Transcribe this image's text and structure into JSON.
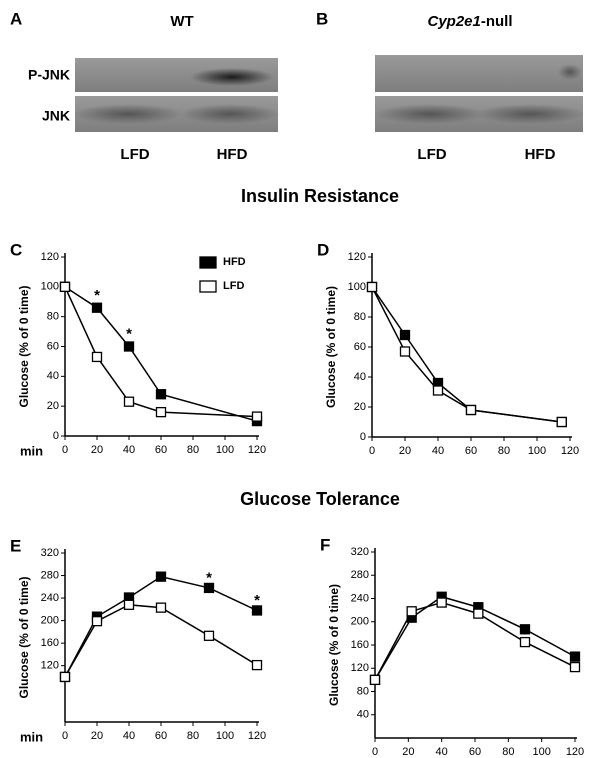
{
  "blots": [
    {
      "panel": "A",
      "title": "WT",
      "rows": [
        "P-JNK",
        "JNK"
      ],
      "lanes": [
        "LFD",
        "HFD"
      ]
    },
    {
      "panel": "B",
      "title_italic": "Cyp2e1",
      "title_rest": "-null",
      "lanes": [
        "LFD",
        "HFD"
      ]
    }
  ],
  "section_titles": [
    "Insulin Resistance",
    "Glucose Tolerance"
  ],
  "chart_data": [
    {
      "type": "line",
      "panel": "C",
      "ylabel": "Glucose (% of 0 time)",
      "xlabel": "min",
      "xlim": [
        0,
        120
      ],
      "xticks": [
        0,
        20,
        40,
        60,
        80,
        100,
        120
      ],
      "ylim": [
        0,
        120
      ],
      "yticks": [
        0,
        20,
        40,
        60,
        80,
        100,
        120
      ],
      "legend": true,
      "series": [
        {
          "name": "HFD",
          "color": "#000000",
          "marker": "filled",
          "x": [
            0,
            20,
            40,
            60,
            120
          ],
          "values": [
            100,
            86,
            60,
            28,
            10
          ]
        },
        {
          "name": "LFD",
          "color": "#000000",
          "marker": "open",
          "x": [
            0,
            20,
            40,
            60,
            120
          ],
          "values": [
            100,
            53,
            23,
            16,
            13
          ]
        }
      ],
      "annotations": [
        {
          "text": "*",
          "x": 20,
          "y": 96
        },
        {
          "text": "*",
          "x": 40,
          "y": 70
        }
      ]
    },
    {
      "type": "line",
      "panel": "D",
      "ylabel": "Glucose (% of 0 time)",
      "xlim": [
        0,
        120
      ],
      "xticks": [
        0,
        20,
        40,
        60,
        80,
        100,
        120
      ],
      "ylim": [
        0,
        120
      ],
      "yticks": [
        0,
        20,
        40,
        60,
        80,
        100,
        120
      ],
      "legend": false,
      "series": [
        {
          "color": "#000000",
          "marker": "filled",
          "x": [
            0,
            20,
            40,
            60,
            115
          ],
          "values": [
            100,
            68,
            36,
            18,
            10
          ]
        },
        {
          "color": "#000000",
          "marker": "open",
          "x": [
            0,
            20,
            40,
            60,
            115
          ],
          "values": [
            100,
            57,
            31,
            18,
            10
          ]
        }
      ]
    },
    {
      "type": "line",
      "panel": "E",
      "ylabel": "Glucose (% of 0 time)",
      "xlabel": "min",
      "xlim": [
        0,
        120
      ],
      "xticks": [
        0,
        20,
        40,
        60,
        80,
        100,
        120
      ],
      "ylim": [
        20,
        320
      ],
      "yticks": [
        120,
        160,
        200,
        240,
        280,
        320
      ],
      "legend": false,
      "series": [
        {
          "color": "#000000",
          "marker": "filled",
          "x": [
            0,
            20,
            40,
            60,
            90,
            120
          ],
          "values": [
            100,
            207,
            241,
            278,
            258,
            218
          ]
        },
        {
          "color": "#000000",
          "marker": "open",
          "x": [
            0,
            20,
            40,
            60,
            90,
            120
          ],
          "values": [
            100,
            199,
            228,
            223,
            173,
            121
          ]
        }
      ],
      "annotations": [
        {
          "text": "*",
          "x": 90,
          "y": 280
        },
        {
          "text": "*",
          "x": 120,
          "y": 240
        }
      ]
    },
    {
      "type": "line",
      "panel": "F",
      "ylabel": "Glucose (% of 0 time)",
      "xlim": [
        0,
        120
      ],
      "xticks": [
        0,
        20,
        40,
        60,
        80,
        100,
        120
      ],
      "ylim": [
        0,
        320
      ],
      "yticks": [
        40,
        80,
        120,
        160,
        200,
        240,
        280,
        320
      ],
      "legend": false,
      "series": [
        {
          "color": "#000000",
          "marker": "filled",
          "x": [
            0,
            22,
            40,
            62,
            90,
            120
          ],
          "values": [
            100,
            207,
            243,
            225,
            187,
            140
          ]
        },
        {
          "color": "#000000",
          "marker": "open",
          "x": [
            0,
            22,
            40,
            62,
            90,
            120
          ],
          "values": [
            100,
            218,
            233,
            214,
            165,
            122
          ]
        }
      ]
    }
  ]
}
